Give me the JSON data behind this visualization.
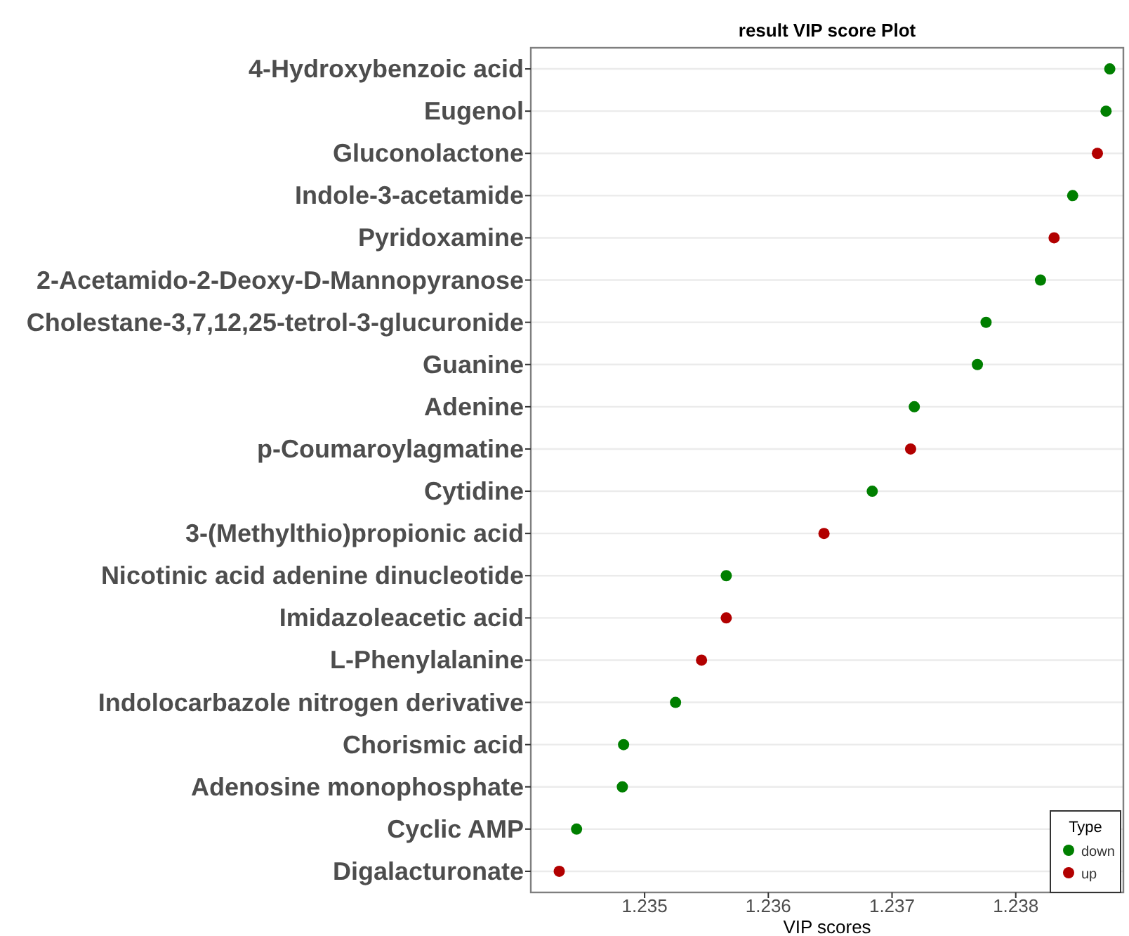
{
  "chart_data": {
    "type": "scatter",
    "orientation": "horizontal",
    "title": "result VIP score Plot",
    "xlabel": "VIP scores",
    "legend_title": "Type",
    "categories": [
      "4-Hydroxybenzoic acid",
      "Eugenol",
      "Gluconolactone",
      "Indole-3-acetamide",
      "Pyridoxamine",
      "2-Acetamido-2-Deoxy-D-Mannopyranose",
      "Cholestane-3,7,12,25-tetrol-3-glucuronide",
      "Guanine",
      "Adenine",
      "p-Coumaroylagmatine",
      "Cytidine",
      "3-(Methylthio)propionic acid",
      "Nicotinic acid adenine dinucleotide",
      "Imidazoleacetic acid",
      "L-Phenylalanine",
      "Indolocarbazole nitrogen derivative",
      "Chorismic acid",
      "Adenosine monophosphate",
      "Cyclic AMP",
      "Digalacturonate"
    ],
    "series": [
      {
        "name": "down",
        "color": "#007f00",
        "values": [
          1.23876,
          1.23873,
          null,
          1.23846,
          null,
          1.2382,
          1.23776,
          1.23769,
          1.23718,
          null,
          1.23684,
          null,
          1.23566,
          null,
          null,
          1.23525,
          1.23483,
          1.23482,
          1.23445,
          null
        ]
      },
      {
        "name": "up",
        "color": "#b20000",
        "values": [
          null,
          null,
          1.23866,
          null,
          1.23831,
          null,
          null,
          null,
          null,
          1.23715,
          null,
          1.23645,
          null,
          1.23566,
          1.23546,
          null,
          null,
          null,
          null,
          1.23431
        ]
      }
    ],
    "xlim": [
      1.23408,
      1.23887
    ],
    "xticks": [
      1.235,
      1.236,
      1.237,
      1.238
    ],
    "grid": "y",
    "legend": "bottom right",
    "marker": "circle"
  }
}
